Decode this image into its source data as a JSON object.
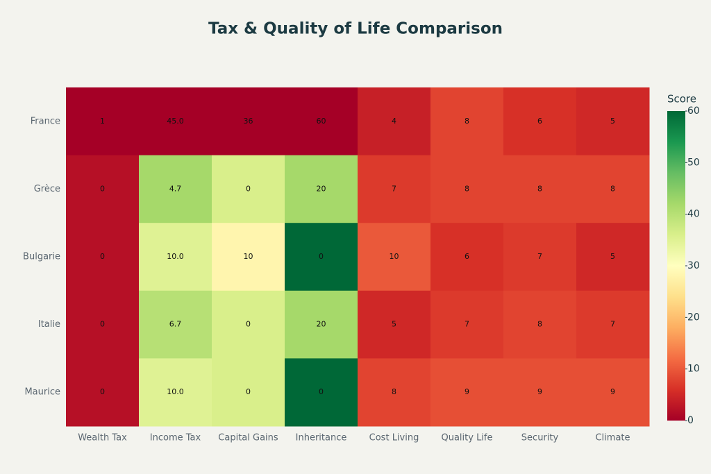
{
  "chart_data": {
    "type": "heatmap",
    "title": "Tax & Quality of Life Comparison",
    "x": [
      "Wealth Tax",
      "Income Tax",
      "Capital Gains",
      "Inheritance",
      "Cost Living",
      "Quality Life",
      "Security",
      "Climate"
    ],
    "y": [
      "France",
      "Grèce",
      "Bulgarie",
      "Italie",
      "Maurice"
    ],
    "scores": [
      [
        0,
        0,
        0,
        0,
        4,
        8,
        6,
        5
      ],
      [
        2,
        42,
        36,
        42,
        7,
        8,
        8,
        8
      ],
      [
        2,
        35,
        28,
        60,
        10,
        6,
        7,
        5
      ],
      [
        2,
        40,
        36,
        42,
        5,
        7,
        8,
        7
      ],
      [
        2,
        35,
        36,
        60,
        8,
        9,
        9,
        9
      ]
    ],
    "values": [
      [
        1,
        45,
        36,
        60,
        4,
        8,
        6,
        5
      ],
      [
        0,
        4.7,
        0,
        20,
        7,
        8,
        8,
        8
      ],
      [
        0,
        10,
        10,
        0,
        10,
        6,
        7,
        5
      ],
      [
        0,
        6.7,
        0,
        20,
        5,
        7,
        8,
        7
      ],
      [
        0,
        10,
        0,
        0,
        8,
        9,
        9,
        9
      ]
    ],
    "value_labels": [
      [
        null,
        "45.0",
        null,
        null,
        null,
        null,
        null,
        null
      ],
      [
        null,
        null,
        null,
        null,
        null,
        null,
        null,
        null
      ],
      [
        null,
        "10.0",
        null,
        null,
        null,
        null,
        null,
        null
      ],
      [
        null,
        null,
        null,
        null,
        null,
        null,
        null,
        null
      ],
      [
        null,
        "10.0",
        null,
        null,
        null,
        null,
        null,
        null
      ]
    ],
    "colorbar_title": "Score",
    "zlim": [
      0,
      60
    ],
    "zticks": [
      0,
      10,
      20,
      30,
      40,
      50,
      60
    ],
    "colorscale": [
      "#a50026",
      "#d73027",
      "#f46d43",
      "#fdae61",
      "#fee08b",
      "#ffffbf",
      "#d9ef8b",
      "#a6d96a",
      "#66bd63",
      "#1a9850",
      "#006837"
    ]
  }
}
